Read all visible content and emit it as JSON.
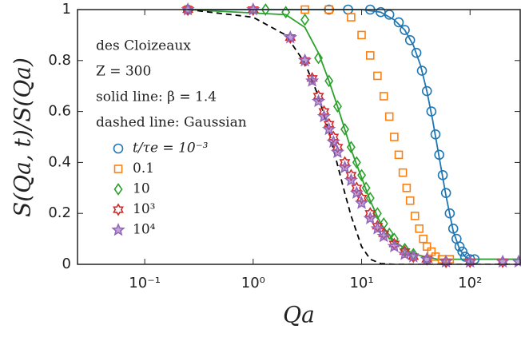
{
  "chart_data": {
    "type": "scatter",
    "x_label": "Qa",
    "y_label": "S(Qa, t)/S(Qa)",
    "annotations": [
      "des Cloizeaux",
      "Z = 300",
      "solid line: β = 1.4",
      "dashed line: Gaussian"
    ],
    "x_log": true,
    "xlim": [
      0.024,
      290
    ],
    "ylim": [
      0,
      1
    ],
    "xticks": [
      {
        "value": 0.1,
        "label": "10⁻¹"
      },
      {
        "value": 1,
        "label": "10⁰"
      },
      {
        "value": 10,
        "label": "10¹"
      },
      {
        "value": 100,
        "label": "10²"
      }
    ],
    "yticks": [
      0,
      0.2,
      0.4,
      0.6,
      0.8,
      1
    ],
    "legend": "upper left",
    "series": [
      {
        "name": "t/τe = 10⁻³",
        "color": "#1f77b4",
        "marker": "circle",
        "x": [
          0.25,
          5,
          7.5,
          12,
          15,
          18,
          22,
          25,
          28,
          32,
          36,
          40,
          44,
          48,
          52,
          56,
          60,
          65,
          70,
          75,
          80,
          85,
          90,
          100,
          110
        ],
        "values": [
          1,
          1,
          1,
          1,
          0.99,
          0.98,
          0.95,
          0.92,
          0.88,
          0.83,
          0.76,
          0.68,
          0.6,
          0.51,
          0.43,
          0.35,
          0.28,
          0.2,
          0.14,
          0.1,
          0.07,
          0.05,
          0.03,
          0.02,
          0.02
        ]
      },
      {
        "name": "0.1",
        "color": "#ff7f0e",
        "marker": "square",
        "x": [
          0.25,
          3,
          5,
          8,
          10,
          12,
          14,
          16,
          18,
          20,
          22,
          24,
          26,
          28,
          31,
          34,
          37,
          40,
          44,
          48,
          55,
          65
        ],
        "values": [
          1,
          1,
          1,
          0.97,
          0.9,
          0.82,
          0.74,
          0.66,
          0.58,
          0.5,
          0.43,
          0.36,
          0.3,
          0.25,
          0.19,
          0.14,
          0.1,
          0.07,
          0.05,
          0.03,
          0.02,
          0.02
        ]
      },
      {
        "name": "10",
        "color": "#2ca02c",
        "marker": "diamond",
        "x": [
          0.25,
          1.3,
          2,
          3,
          4,
          5,
          6,
          7,
          8,
          9,
          10,
          11,
          12,
          14,
          16,
          18,
          20,
          25,
          30,
          40,
          60
        ],
        "values": [
          1,
          1,
          0.99,
          0.96,
          0.81,
          0.72,
          0.62,
          0.53,
          0.46,
          0.4,
          0.35,
          0.3,
          0.26,
          0.2,
          0.16,
          0.12,
          0.1,
          0.06,
          0.04,
          0.02,
          0.01
        ]
      },
      {
        "name": "10³",
        "color": "#d62728",
        "marker": "hexagram",
        "x": [
          0.25,
          1,
          2.2,
          3,
          3.5,
          4,
          4.5,
          5,
          5.5,
          6,
          7,
          8,
          9,
          10,
          12,
          14,
          16,
          20,
          25,
          30,
          40,
          60,
          100,
          200
        ],
        "values": [
          1,
          1,
          0.89,
          0.8,
          0.73,
          0.66,
          0.6,
          0.55,
          0.5,
          0.46,
          0.4,
          0.35,
          0.3,
          0.26,
          0.2,
          0.15,
          0.12,
          0.08,
          0.05,
          0.03,
          0.02,
          0.01,
          0.01,
          0.01
        ]
      },
      {
        "name": "10⁴",
        "color": "#9467bd",
        "marker": "star",
        "x": [
          0.25,
          1,
          2.2,
          3,
          3.5,
          4,
          4.5,
          5,
          5.5,
          6,
          7,
          8,
          9,
          10,
          12,
          14,
          16,
          20,
          25,
          30,
          40,
          60,
          100,
          200,
          280
        ],
        "values": [
          1,
          1,
          0.89,
          0.8,
          0.72,
          0.64,
          0.58,
          0.53,
          0.48,
          0.44,
          0.38,
          0.33,
          0.28,
          0.24,
          0.18,
          0.14,
          0.11,
          0.07,
          0.04,
          0.03,
          0.02,
          0.01,
          0.01,
          0.01,
          0.01
        ]
      }
    ],
    "curves": [
      {
        "color": "#1f77b4",
        "dash": false,
        "x": [
          0.25,
          10,
          15,
          20,
          25,
          30,
          35,
          40,
          45,
          50,
          55,
          60,
          70,
          80,
          90,
          100,
          290
        ],
        "values": [
          1,
          1,
          0.99,
          0.96,
          0.92,
          0.86,
          0.78,
          0.68,
          0.57,
          0.46,
          0.36,
          0.27,
          0.13,
          0.06,
          0.03,
          0.02,
          0.02
        ]
      },
      {
        "color": "#2ca02c",
        "dash": false,
        "x": [
          0.25,
          2,
          3,
          4,
          5,
          6,
          7,
          8,
          10,
          12,
          15,
          20,
          30,
          50,
          290
        ],
        "values": [
          1,
          0.98,
          0.93,
          0.83,
          0.72,
          0.62,
          0.53,
          0.45,
          0.34,
          0.25,
          0.16,
          0.09,
          0.04,
          0.02,
          0.02
        ]
      },
      {
        "color": "#000000",
        "dash": true,
        "x": [
          0.25,
          1,
          2,
          3,
          4,
          5,
          6,
          7,
          8,
          10,
          12,
          15,
          20,
          290
        ],
        "values": [
          1,
          0.97,
          0.9,
          0.79,
          0.66,
          0.52,
          0.39,
          0.28,
          0.19,
          0.07,
          0.02,
          0.003,
          0,
          0
        ]
      }
    ]
  }
}
